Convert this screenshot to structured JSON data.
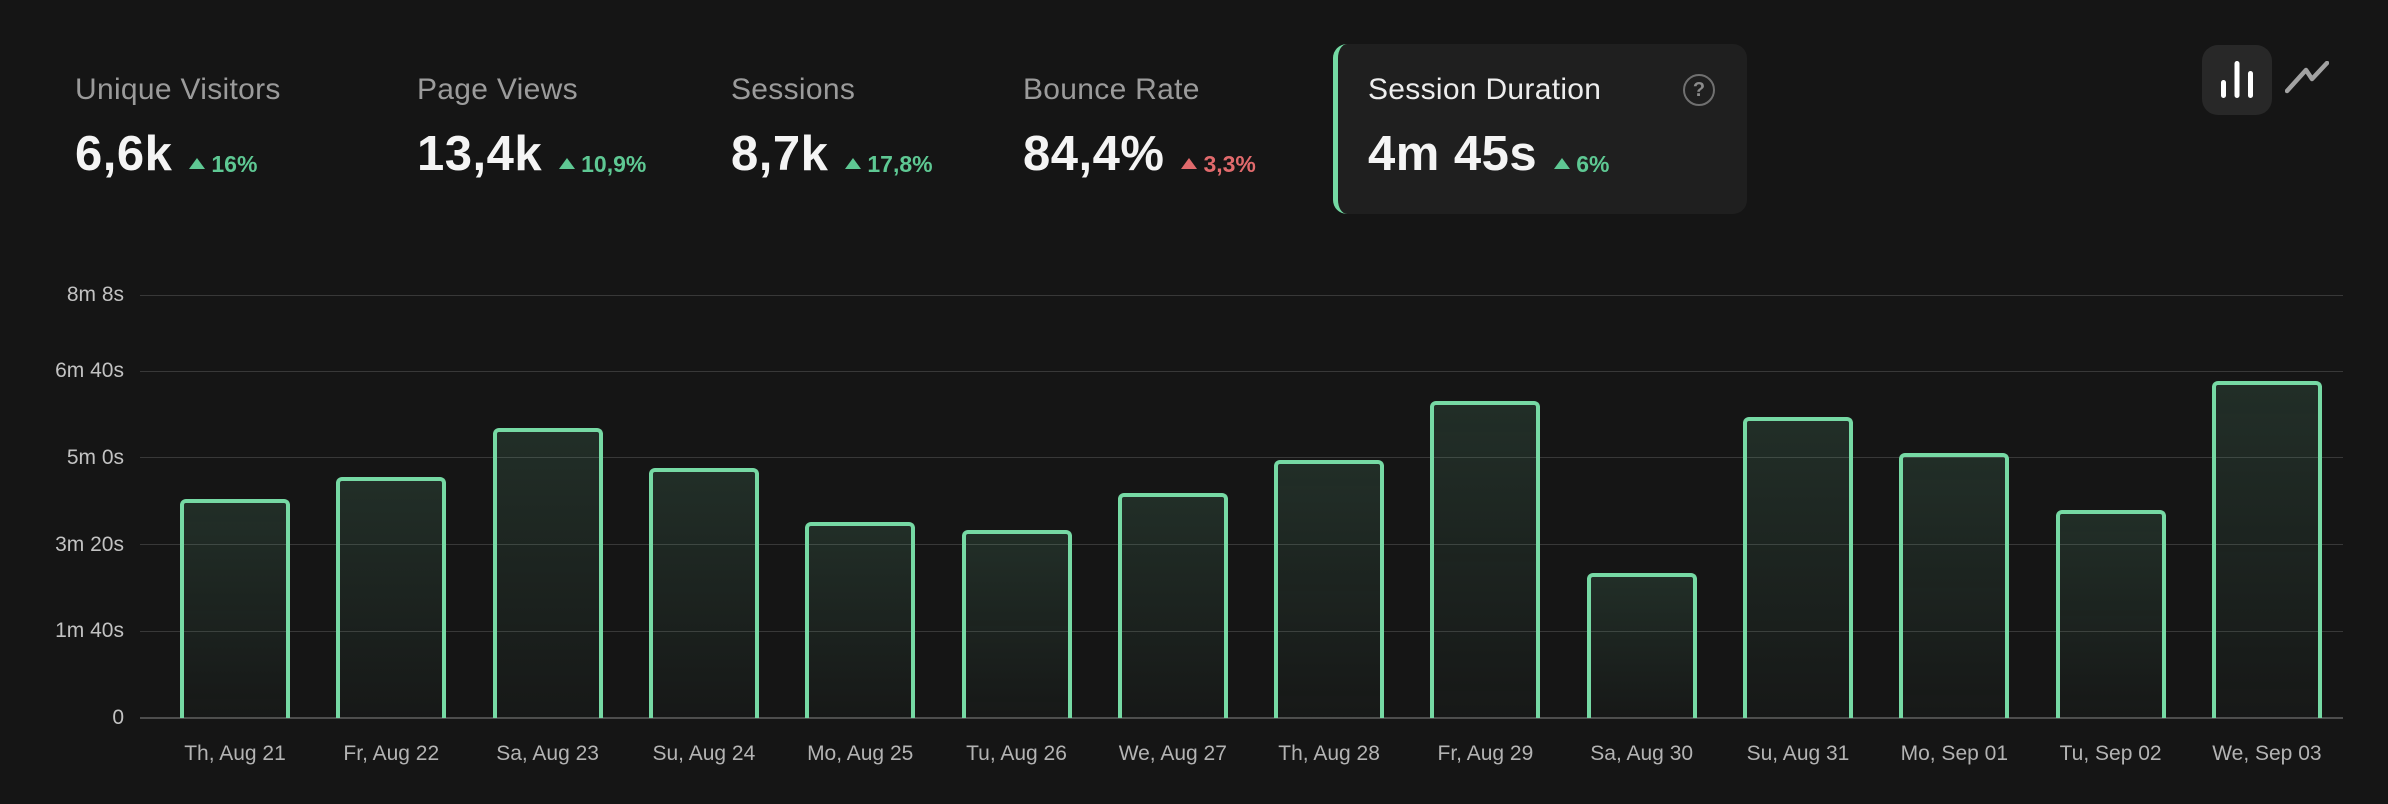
{
  "metrics": [
    {
      "label": "Unique Visitors",
      "value": "6,6k",
      "delta": "16%",
      "direction": "up",
      "trend": "positive",
      "selected": false
    },
    {
      "label": "Page Views",
      "value": "13,4k",
      "delta": "10,9%",
      "direction": "up",
      "trend": "positive",
      "selected": false
    },
    {
      "label": "Sessions",
      "value": "8,7k",
      "delta": "17,8%",
      "direction": "up",
      "trend": "positive",
      "selected": false
    },
    {
      "label": "Bounce Rate",
      "value": "84,4%",
      "delta": "3,3%",
      "direction": "up",
      "trend": "negative",
      "selected": false
    },
    {
      "label": "Session Duration",
      "value": "4m 45s",
      "delta": "6%",
      "direction": "up",
      "trend": "positive",
      "selected": true,
      "help_icon": "question-circle-icon"
    }
  ],
  "toolbar": {
    "buttons": [
      {
        "name": "bar-chart-view",
        "icon": "bar-chart-icon",
        "active": true
      },
      {
        "name": "line-chart-view",
        "icon": "line-chart-icon",
        "active": false
      }
    ]
  },
  "colors": {
    "background": "#151515",
    "card_background": "#1f1f1f",
    "accent_green": "#76d9a4",
    "delta_positive": "#5ec893",
    "delta_negative": "#e16a6c",
    "text_primary": "#f4f4f4",
    "text_secondary": "#9b9b9b"
  },
  "chart_data": {
    "type": "bar",
    "metric": "Session Duration",
    "categories": [
      "Th, Aug 21",
      "Fr, Aug 22",
      "Sa, Aug 23",
      "Su, Aug 24",
      "Mo, Aug 25",
      "Tu, Aug 26",
      "We, Aug 27",
      "Th, Aug 28",
      "Fr, Aug 29",
      "Sa, Aug 30",
      "Su, Aug 31",
      "Mo, Sep 01",
      "Tu, Sep 02",
      "We, Sep 03"
    ],
    "values_seconds": [
      253,
      278,
      334,
      288,
      226,
      217,
      259,
      298,
      366,
      167,
      347,
      306,
      240,
      389
    ],
    "y_ticks": [
      {
        "label": "8m 8s",
        "seconds": 488
      },
      {
        "label": "6m 40s",
        "seconds": 400
      },
      {
        "label": "5m 0s",
        "seconds": 300
      },
      {
        "label": "3m 20s",
        "seconds": 200
      },
      {
        "label": "1m 40s",
        "seconds": 100
      },
      {
        "label": "0",
        "seconds": 0
      }
    ],
    "ylim": [
      0,
      488
    ],
    "grid": "horizontal",
    "legend": "none"
  }
}
